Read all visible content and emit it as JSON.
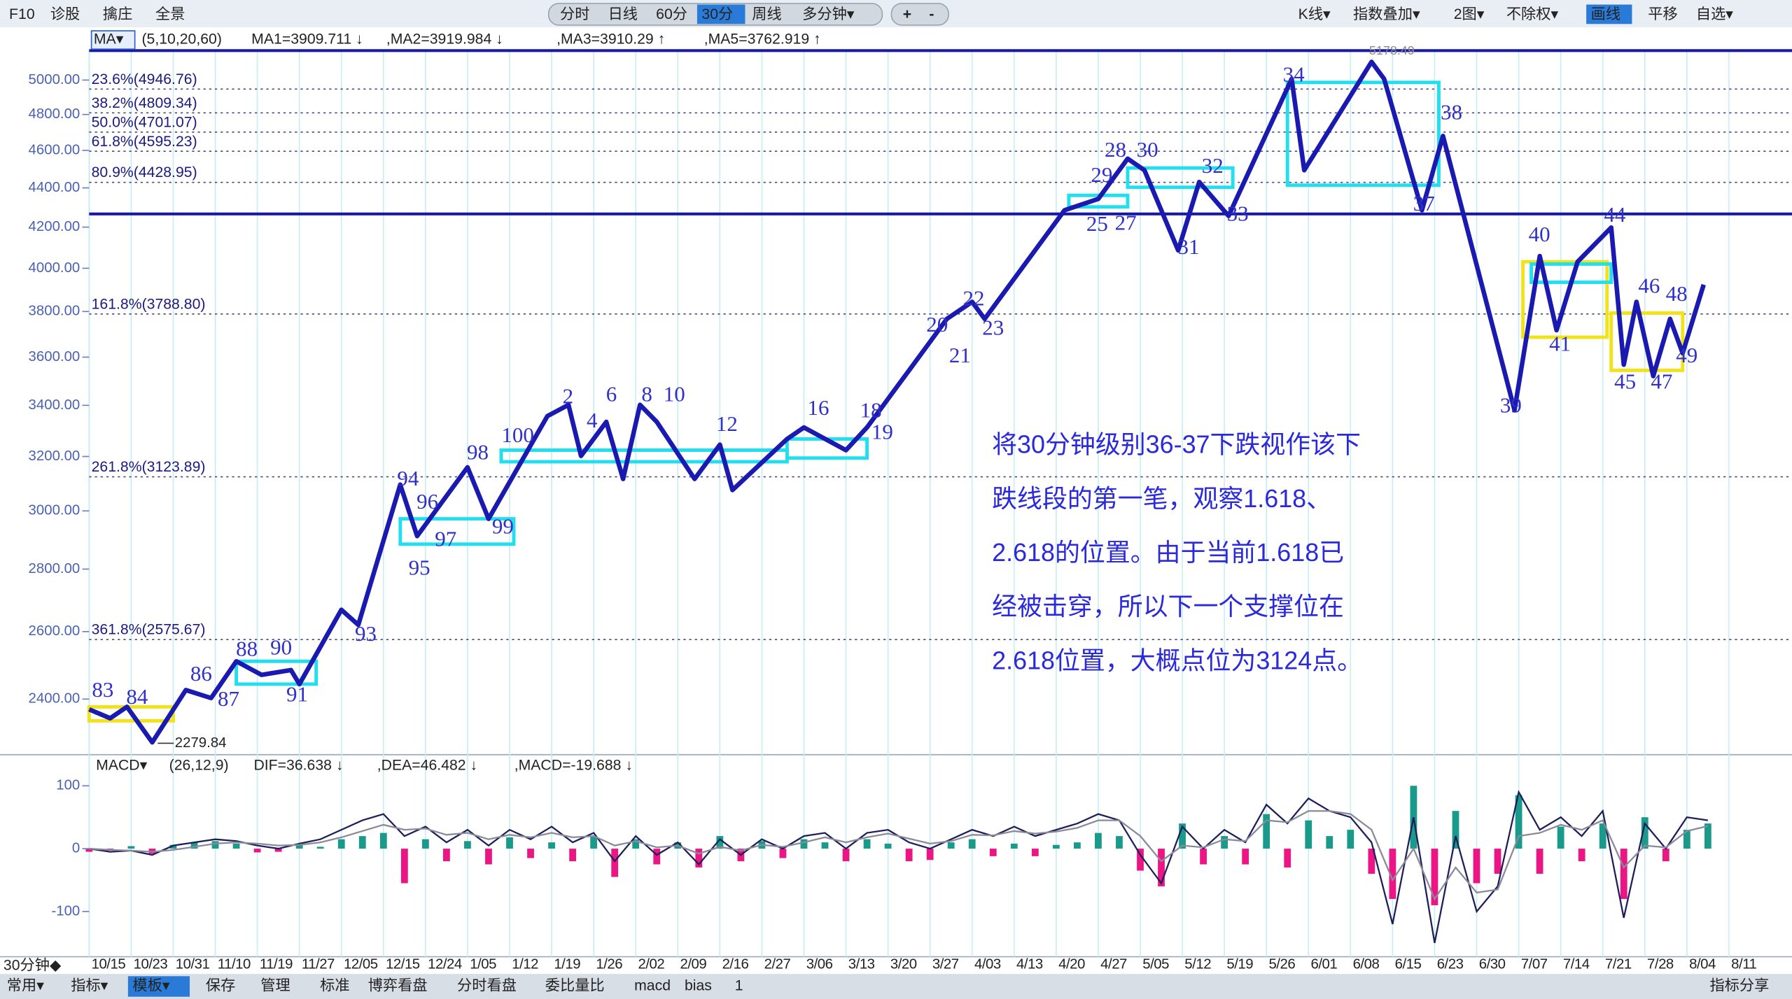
{
  "toolbar": {
    "left": [
      "F10",
      "诊股",
      "擒庄",
      "全景"
    ],
    "periods": [
      "分时",
      "日线",
      "60分",
      "30分",
      "周线",
      "多分钟▾"
    ],
    "zoom": [
      "+",
      "-"
    ],
    "right": [
      "K线▾",
      "指数叠加▾",
      "2图▾",
      "不除权▾",
      "画线",
      "平移",
      "自选▾"
    ]
  },
  "ma_legend": [
    {
      "text": "MA▾",
      "color": "#2a5bd0"
    },
    {
      "text": "(5,10,20,60)",
      "color": "#333333"
    },
    {
      "text": "MA1=3909.711 ↓",
      "color": "#111111"
    },
    {
      "text": ",MA2=3919.984 ↓",
      "color": "#2040d0"
    },
    {
      "text": ",MA3=3910.29 ↑",
      "color": "#20a030"
    },
    {
      "text": ",MA5=3762.919 ↑",
      "color": "#e0106a"
    }
  ],
  "chart_data": [
    {
      "type": "line",
      "log_scale": true,
      "xlim": [
        0,
        40.5
      ],
      "ylim": [
        2250,
        5180
      ],
      "yticks": [
        {
          "value": 2400,
          "label": "2400.00"
        },
        {
          "value": 2600,
          "label": "2600.00"
        },
        {
          "value": 2800,
          "label": "2800.00"
        },
        {
          "value": 3000,
          "label": "3000.00"
        },
        {
          "value": 3200,
          "label": "3200.00"
        },
        {
          "value": 3400,
          "label": "3400.00"
        },
        {
          "value": 3600,
          "label": "3600.00"
        },
        {
          "value": 3800,
          "label": "3800.00"
        },
        {
          "value": 4000,
          "label": "4000.00"
        },
        {
          "value": 4200,
          "label": "4200.00"
        },
        {
          "value": 4400,
          "label": "4400.00"
        },
        {
          "value": 4600,
          "label": "4600.00"
        },
        {
          "value": 4800,
          "label": "4800.00"
        },
        {
          "value": 5000,
          "label": "5000.00"
        }
      ],
      "xticks": [
        {
          "value": 0,
          "label": "10/15"
        },
        {
          "value": 1,
          "label": "10/23"
        },
        {
          "value": 2,
          "label": "10/31"
        },
        {
          "value": 3,
          "label": "11/10"
        },
        {
          "value": 4,
          "label": "11/19"
        },
        {
          "value": 5,
          "label": "11/27"
        },
        {
          "value": 6,
          "label": "12/05"
        },
        {
          "value": 7,
          "label": "12/15"
        },
        {
          "value": 8,
          "label": "12/24"
        },
        {
          "value": 9,
          "label": "1/05"
        },
        {
          "value": 10,
          "label": "1/12"
        },
        {
          "value": 11,
          "label": "1/19"
        },
        {
          "value": 12,
          "label": "1/26"
        },
        {
          "value": 13,
          "label": "2/02"
        },
        {
          "value": 14,
          "label": "2/09"
        },
        {
          "value": 15,
          "label": "2/16"
        },
        {
          "value": 16,
          "label": "2/27"
        },
        {
          "value": 17,
          "label": "3/06"
        },
        {
          "value": 18,
          "label": "3/13"
        },
        {
          "value": 19,
          "label": "3/20"
        },
        {
          "value": 20,
          "label": "3/27"
        },
        {
          "value": 21,
          "label": "4/03"
        },
        {
          "value": 22,
          "label": "4/13"
        },
        {
          "value": 23,
          "label": "4/20"
        },
        {
          "value": 24,
          "label": "4/27"
        },
        {
          "value": 25,
          "label": "5/05"
        },
        {
          "value": 26,
          "label": "5/12"
        },
        {
          "value": 27,
          "label": "5/19"
        },
        {
          "value": 28,
          "label": "5/26"
        },
        {
          "value": 29,
          "label": "6/01"
        },
        {
          "value": 30,
          "label": "6/08"
        },
        {
          "value": 31,
          "label": "6/15"
        },
        {
          "value": 32,
          "label": "6/23"
        },
        {
          "value": 33,
          "label": "6/30"
        },
        {
          "value": 34,
          "label": "7/07"
        },
        {
          "value": 35,
          "label": "7/14"
        },
        {
          "value": 36,
          "label": "7/21"
        },
        {
          "value": 37,
          "label": "7/28"
        },
        {
          "value": 38,
          "label": "8/04"
        },
        {
          "value": 39,
          "label": "8/11"
        }
      ],
      "series": [
        {
          "color": "#1a1ab0",
          "x": [
            0.0,
            0.5,
            0.9,
            1.5,
            2.3,
            2.9,
            3.5,
            4.1,
            4.8,
            5.0,
            6.0,
            6.4,
            7.4,
            7.8,
            9.0,
            9.5,
            10.9,
            11.4,
            11.7,
            12.3,
            12.7,
            13.1,
            13.5,
            14.4,
            15.0,
            15.3,
            16.6,
            17.0,
            18.0,
            18.5,
            19.6,
            20.0,
            20.4,
            21.0,
            21.3,
            23.2,
            24.0,
            24.7,
            25.1,
            25.9,
            26.4,
            27.1,
            28.6,
            28.9,
            30.5,
            30.8,
            31.7,
            32.2,
            33.9,
            34.5,
            34.9,
            35.4,
            36.2,
            36.5,
            36.8,
            37.2,
            37.6,
            37.9,
            38.4
          ],
          "values": [
            2371,
            2346,
            2378,
            2280,
            2426,
            2403,
            2510,
            2470,
            2484,
            2443,
            2668,
            2621,
            3095,
            2912,
            3159,
            2972,
            3357,
            3402,
            3202,
            3334,
            3116,
            3402,
            3334,
            3116,
            3245,
            3075,
            3267,
            3312,
            3224,
            3312,
            3568,
            3666,
            3767,
            3844,
            3767,
            4285,
            4343,
            4555,
            4493,
            4086,
            4431,
            4256,
            5007,
            4493,
            5109,
            5007,
            4285,
            4679,
            3381,
            4058,
            3717,
            4031,
            4198,
            3568,
            3844,
            3520,
            3767,
            3617,
            3923
          ]
        }
      ],
      "levels": [
        {
          "label": "23.6%(4946.76)",
          "value": 4946.76
        },
        {
          "label": "38.2%(4809.34)",
          "value": 4809.34
        },
        {
          "label": "50.0%(4701.07)",
          "value": 4701.07
        },
        {
          "label": "61.8%(4595.23)",
          "value": 4595.23
        },
        {
          "label": "80.9%(4428.95)",
          "value": 4428.95
        },
        {
          "label": "161.8%(3788.80)",
          "value": 3788.8
        },
        {
          "label": "261.8%(3123.89)",
          "value": 3123.89
        },
        {
          "label": "361.8%(2575.67)",
          "value": 2575.67
        }
      ],
      "hlines": [
        5178,
        4266
      ],
      "zones": [
        {
          "x0": 0.0,
          "x1": 2.0,
          "low": 2339,
          "high": 2378,
          "color": "#f2e21a"
        },
        {
          "x0": 3.5,
          "x1": 5.4,
          "low": 2443,
          "high": 2510,
          "color": "#22dff0"
        },
        {
          "x0": 7.4,
          "x1": 10.1,
          "low": 2884,
          "high": 2972,
          "color": "#22dff0"
        },
        {
          "x0": 9.8,
          "x1": 16.6,
          "low": 3180,
          "high": 3224,
          "color": "#22dff0"
        },
        {
          "x0": 16.6,
          "x1": 18.5,
          "low": 3194,
          "high": 3267,
          "color": "#22dff0"
        },
        {
          "x0": 23.3,
          "x1": 24.7,
          "low": 4302,
          "high": 4361,
          "color": "#22dff0"
        },
        {
          "x0": 24.7,
          "x1": 27.2,
          "low": 4403,
          "high": 4505,
          "color": "#22dff0"
        },
        {
          "x0": 28.5,
          "x1": 32.1,
          "low": 4414,
          "high": 4986,
          "color": "#22dff0"
        },
        {
          "x0": 34.1,
          "x1": 36.1,
          "low": 3686,
          "high": 4031,
          "color": "#f2e21a"
        },
        {
          "x0": 34.3,
          "x1": 36.2,
          "low": 3934,
          "high": 4020,
          "color": "#22dff0"
        },
        {
          "x0": 36.2,
          "x1": 37.9,
          "low": 3544,
          "high": 3793,
          "color": "#f2e21a"
        }
      ],
      "wave_labels": [
        "83",
        "84",
        "86",
        "87",
        "88",
        "90",
        "91",
        "93",
        "94",
        "95",
        "96",
        "97",
        "98",
        "99",
        "100",
        "2",
        "4",
        "6",
        "8",
        "10",
        "12",
        "16",
        "18",
        "19",
        "20",
        "21",
        "22",
        "23",
        "25",
        "27",
        "28",
        "29",
        "30",
        "31",
        "32",
        "33",
        "34",
        "37",
        "38",
        "39",
        "40",
        "41",
        "44",
        "45",
        "46",
        "47",
        "48",
        "49"
      ],
      "high_label": "5178.49",
      "low_label": "2279.84",
      "annotation": [
        "将30分钟级别36-37下跌视作该下",
        "跌线段的第一笔，观察1.618、",
        "2.618的位置。由于当前1.618已",
        "经被击穿，所以下一个支撑位在",
        "2.618位置，大概点位为3124点。"
      ]
    },
    {
      "type": "macd",
      "legend": [
        {
          "text": "MACD▾",
          "color": "#111111"
        },
        {
          "text": "(26,12,9)",
          "color": "#333333"
        },
        {
          "text": "DIF=36.638 ↓",
          "color": "#111111"
        },
        {
          "text": ",DEA=46.482 ↓",
          "color": "#2040d0"
        },
        {
          "text": ",MACD=-19.688 ↓",
          "color": "#20a030"
        }
      ],
      "xlim": [
        0,
        40.5
      ],
      "ylim": [
        -172,
        115
      ],
      "yticks": [
        100,
        0,
        -100
      ],
      "x": [
        0,
        0.5,
        1,
        1.5,
        2,
        2.5,
        3,
        3.5,
        4,
        4.5,
        5,
        5.5,
        6,
        6.5,
        7,
        7.5,
        8,
        8.5,
        9,
        9.5,
        10,
        10.5,
        11,
        11.5,
        12,
        12.5,
        13,
        13.5,
        14,
        14.5,
        15,
        15.5,
        16,
        16.5,
        17,
        17.5,
        18,
        18.5,
        19,
        19.5,
        20,
        20.5,
        21,
        21.5,
        22,
        22.5,
        23,
        23.5,
        24,
        24.5,
        25,
        25.5,
        26,
        26.5,
        27,
        27.5,
        28,
        28.5,
        29,
        29.5,
        30,
        30.5,
        31,
        31.5,
        32,
        32.5,
        33,
        33.5,
        34,
        34.5,
        35,
        35.5,
        36,
        36.5,
        37,
        37.5,
        38,
        38.5
      ],
      "histogram": {
        "up_color": "#1a9a8a",
        "down_color": "#ec1585",
        "values": [
          -5,
          -3,
          4,
          -8,
          6,
          10,
          12,
          8,
          -6,
          -5,
          8,
          3,
          15,
          20,
          25,
          -55,
          15,
          -20,
          12,
          -25,
          18,
          -15,
          10,
          -20,
          20,
          -45,
          15,
          -25,
          10,
          -30,
          20,
          -20,
          12,
          -15,
          15,
          10,
          -20,
          15,
          8,
          -20,
          -18,
          10,
          15,
          -12,
          8,
          -12,
          6,
          10,
          25,
          20,
          -35,
          -60,
          40,
          -25,
          20,
          -25,
          55,
          -30,
          45,
          20,
          30,
          -40,
          -80,
          100,
          -90,
          60,
          -55,
          -40,
          85,
          -40,
          35,
          -20,
          40,
          -80,
          50,
          -20,
          30,
          40
        ]
      },
      "series": [
        {
          "color": "#1e1e5a",
          "values": [
            0,
            -5,
            -3,
            -10,
            5,
            10,
            15,
            12,
            5,
            0,
            8,
            15,
            30,
            45,
            55,
            20,
            35,
            10,
            30,
            5,
            30,
            15,
            35,
            10,
            25,
            -20,
            20,
            -10,
            10,
            -25,
            15,
            -10,
            15,
            0,
            20,
            25,
            0,
            25,
            30,
            10,
            0,
            15,
            30,
            20,
            35,
            20,
            30,
            40,
            55,
            45,
            -10,
            -55,
            35,
            0,
            30,
            10,
            70,
            40,
            80,
            60,
            50,
            10,
            -120,
            50,
            -150,
            20,
            -100,
            -60,
            90,
            30,
            50,
            20,
            60,
            -110,
            40,
            0,
            50,
            45
          ]
        },
        {
          "color": "#8a8a9a",
          "values": [
            0,
            -2,
            -3,
            -5,
            -2,
            3,
            8,
            10,
            8,
            5,
            6,
            10,
            18,
            28,
            38,
            30,
            32,
            22,
            25,
            15,
            22,
            18,
            25,
            18,
            20,
            5,
            12,
            2,
            5,
            -8,
            3,
            -3,
            6,
            3,
            10,
            18,
            10,
            18,
            24,
            16,
            8,
            12,
            22,
            21,
            28,
            24,
            27,
            33,
            45,
            45,
            20,
            -20,
            5,
            2,
            15,
            12,
            45,
            42,
            60,
            60,
            55,
            30,
            -50,
            0,
            -80,
            -30,
            -70,
            -65,
            20,
            25,
            38,
            30,
            45,
            -30,
            5,
            2,
            28,
            36
          ]
        }
      ]
    }
  ],
  "footer": {
    "period": "30分钟◆",
    "tabs": [
      "常用▾",
      "指标▾",
      "模板▾",
      "保存",
      "管理",
      "标准",
      "博弈看盘",
      "分时看盘",
      "委比量比",
      "macd",
      "bias",
      "1"
    ],
    "share": "指标分享"
  }
}
